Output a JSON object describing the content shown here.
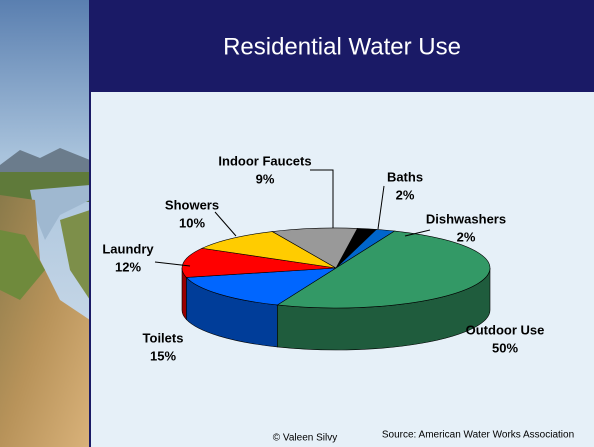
{
  "chart_data": {
    "type": "pie3d",
    "title": "Residential Water Use",
    "categories": [
      "Baths",
      "Dishwashers",
      "Outdoor Use",
      "Toilets",
      "Laundry",
      "Showers",
      "Indoor Faucets"
    ],
    "values": [
      2,
      2,
      50,
      15,
      12,
      10,
      9
    ],
    "value_labels": [
      "2%",
      "2%",
      "50%",
      "15%",
      "12%",
      "10%",
      "9%"
    ],
    "colors": [
      "#000000",
      "#0066cc",
      "#339966",
      "#0066ff",
      "#ff0000",
      "#ffcc00",
      "#999999"
    ],
    "credit": "© Valeen Silvy",
    "source": "Source: American Water Works Association"
  }
}
